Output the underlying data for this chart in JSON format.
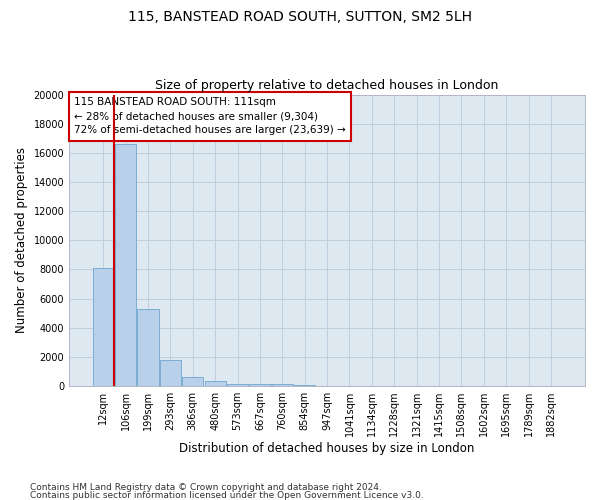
{
  "title1": "115, BANSTEAD ROAD SOUTH, SUTTON, SM2 5LH",
  "title2": "Size of property relative to detached houses in London",
  "xlabel": "Distribution of detached houses by size in London",
  "ylabel": "Number of detached properties",
  "categories": [
    "12sqm",
    "106sqm",
    "199sqm",
    "293sqm",
    "386sqm",
    "480sqm",
    "573sqm",
    "667sqm",
    "760sqm",
    "854sqm",
    "947sqm",
    "1041sqm",
    "1134sqm",
    "1228sqm",
    "1321sqm",
    "1415sqm",
    "1508sqm",
    "1602sqm",
    "1695sqm",
    "1789sqm",
    "1882sqm"
  ],
  "bar_heights": [
    8100,
    16600,
    5300,
    1800,
    650,
    320,
    175,
    130,
    110,
    80,
    0,
    0,
    0,
    0,
    0,
    0,
    0,
    0,
    0,
    0,
    0
  ],
  "bar_color": "#b8d0ea",
  "bar_edge_color": "#7aadd4",
  "annotation_line1": "115 BANSTEAD ROAD SOUTH: 111sqm",
  "annotation_line2": "← 28% of detached houses are smaller (9,304)",
  "annotation_line3": "72% of semi-detached houses are larger (23,639) →",
  "annotation_box_color": "#ffffff",
  "annotation_box_edge": "#cc0000",
  "property_line_color": "#cc0000",
  "ylim": [
    0,
    20000
  ],
  "yticks": [
    0,
    2000,
    4000,
    6000,
    8000,
    10000,
    12000,
    14000,
    16000,
    18000,
    20000
  ],
  "footer1": "Contains HM Land Registry data © Crown copyright and database right 2024.",
  "footer2": "Contains public sector information licensed under the Open Government Licence v3.0.",
  "bg_color": "#ffffff",
  "plot_bg_color": "#dde8f0",
  "grid_color": "#c0cfe0",
  "title1_fontsize": 10,
  "title2_fontsize": 9,
  "axis_label_fontsize": 8.5,
  "tick_fontsize": 7,
  "annotation_fontsize": 7.5,
  "footer_fontsize": 6.5
}
